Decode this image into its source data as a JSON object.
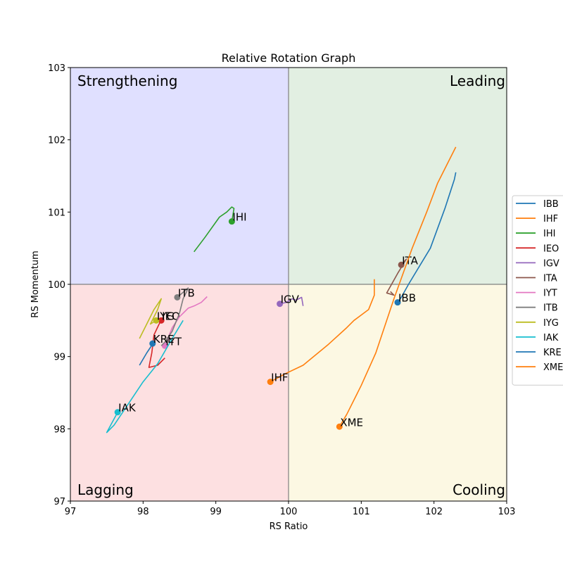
{
  "chart_data": {
    "type": "line",
    "title": "Relative Rotation Graph",
    "xlabel": "RS Ratio",
    "ylabel": "RS Momentum",
    "xlim": [
      97,
      103
    ],
    "ylim": [
      97,
      103
    ],
    "x_ticks": [
      "97",
      "98",
      "99",
      "100",
      "101",
      "102",
      "103"
    ],
    "y_ticks": [
      "97",
      "98",
      "99",
      "100",
      "101",
      "102",
      "103"
    ],
    "reference_x": 100,
    "reference_y": 100,
    "grid": false,
    "legend_position": "right",
    "quadrants": [
      {
        "label": "Strengthening",
        "x": [
          97,
          100
        ],
        "y": [
          100,
          103
        ],
        "color": "#e0e0ff",
        "label_anchor": "top-left"
      },
      {
        "label": "Leading",
        "x": [
          100,
          103
        ],
        "y": [
          100,
          103
        ],
        "color": "#e2efe2",
        "label_anchor": "top-right"
      },
      {
        "label": "Lagging",
        "x": [
          97,
          100
        ],
        "y": [
          97,
          100
        ],
        "color": "#fde0e1",
        "label_anchor": "bottom-left"
      },
      {
        "label": "Cooling",
        "x": [
          100,
          103
        ],
        "y": [
          97,
          100
        ],
        "color": "#fcf8e3",
        "label_anchor": "bottom-right"
      }
    ],
    "series": [
      {
        "name": "IBB",
        "color": "#1f77b4",
        "x": [
          102.3,
          102.28,
          102.15,
          101.95,
          101.8,
          101.65,
          101.55,
          101.5
        ],
        "y": [
          101.55,
          101.45,
          101.05,
          100.5,
          100.25,
          100.0,
          99.82,
          99.75
        ]
      },
      {
        "name": "IHF",
        "color": "#ff7f0e",
        "x": [
          101.18,
          101.18,
          101.1,
          100.9,
          100.8,
          100.55,
          100.2,
          99.95,
          99.75
        ],
        "y": [
          100.07,
          99.85,
          99.65,
          99.5,
          99.4,
          99.17,
          98.88,
          98.76,
          98.65
        ]
      },
      {
        "name": "IHI",
        "color": "#2ca02c",
        "x": [
          98.7,
          98.85,
          99.05,
          99.15,
          99.22,
          99.25,
          99.22
        ],
        "y": [
          100.45,
          100.65,
          100.93,
          101.0,
          101.07,
          101.05,
          100.87
        ]
      },
      {
        "name": "IEO",
        "color": "#d62728",
        "x": [
          98.3,
          98.2,
          98.08,
          98.12,
          98.15,
          98.22,
          98.25
        ],
        "y": [
          98.98,
          98.88,
          98.85,
          99.05,
          99.3,
          99.45,
          99.5
        ]
      },
      {
        "name": "IGV",
        "color": "#9467bd",
        "x": [
          100.2,
          100.18,
          100.1,
          100.05,
          99.97,
          99.88
        ],
        "y": [
          99.7,
          99.82,
          99.78,
          99.8,
          99.75,
          99.73
        ]
      },
      {
        "name": "ITA",
        "color": "#8c564b",
        "x": [
          101.4,
          101.45,
          101.35,
          101.5,
          101.62,
          101.55
        ],
        "y": [
          99.9,
          99.85,
          99.88,
          100.15,
          100.35,
          100.27
        ]
      },
      {
        "name": "IYT",
        "color": "#e377c2",
        "x": [
          98.88,
          98.8,
          98.7,
          98.62,
          98.58,
          98.5,
          98.4,
          98.3
        ],
        "y": [
          99.83,
          99.75,
          99.7,
          99.67,
          99.63,
          99.55,
          99.4,
          99.15
        ]
      },
      {
        "name": "ITB",
        "color": "#7f7f7f",
        "x": [
          98.25,
          98.3,
          98.4,
          98.5,
          98.55,
          98.6,
          98.62,
          98.47
        ],
        "y": [
          99.15,
          99.2,
          99.35,
          99.6,
          99.8,
          99.9,
          99.95,
          99.82
        ]
      },
      {
        "name": "IYG",
        "color": "#bcbd22",
        "x": [
          97.95,
          98.05,
          98.15,
          98.25,
          98.2,
          98.1,
          98.18
        ],
        "y": [
          99.25,
          99.45,
          99.65,
          99.8,
          99.65,
          99.45,
          99.5
        ]
      },
      {
        "name": "IAK",
        "color": "#17becf",
        "x": [
          98.55,
          98.4,
          98.2,
          98.0,
          97.8,
          97.6,
          97.5,
          97.65
        ],
        "y": [
          99.5,
          99.25,
          98.9,
          98.65,
          98.35,
          98.05,
          97.95,
          98.23
        ]
      },
      {
        "name": "KRE",
        "color": "#1f77b4",
        "x": [
          97.95,
          98.05,
          98.15,
          98.13
        ],
        "y": [
          98.88,
          99.05,
          99.2,
          99.18
        ]
      },
      {
        "name": "XME",
        "color": "#ff7f0e",
        "x": [
          102.3,
          102.2,
          102.05,
          101.9,
          101.7,
          101.45,
          101.2,
          101.0,
          100.8,
          100.7
        ],
        "y": [
          101.9,
          101.7,
          101.4,
          101.0,
          100.5,
          99.8,
          99.05,
          98.6,
          98.2,
          98.03
        ]
      }
    ]
  }
}
